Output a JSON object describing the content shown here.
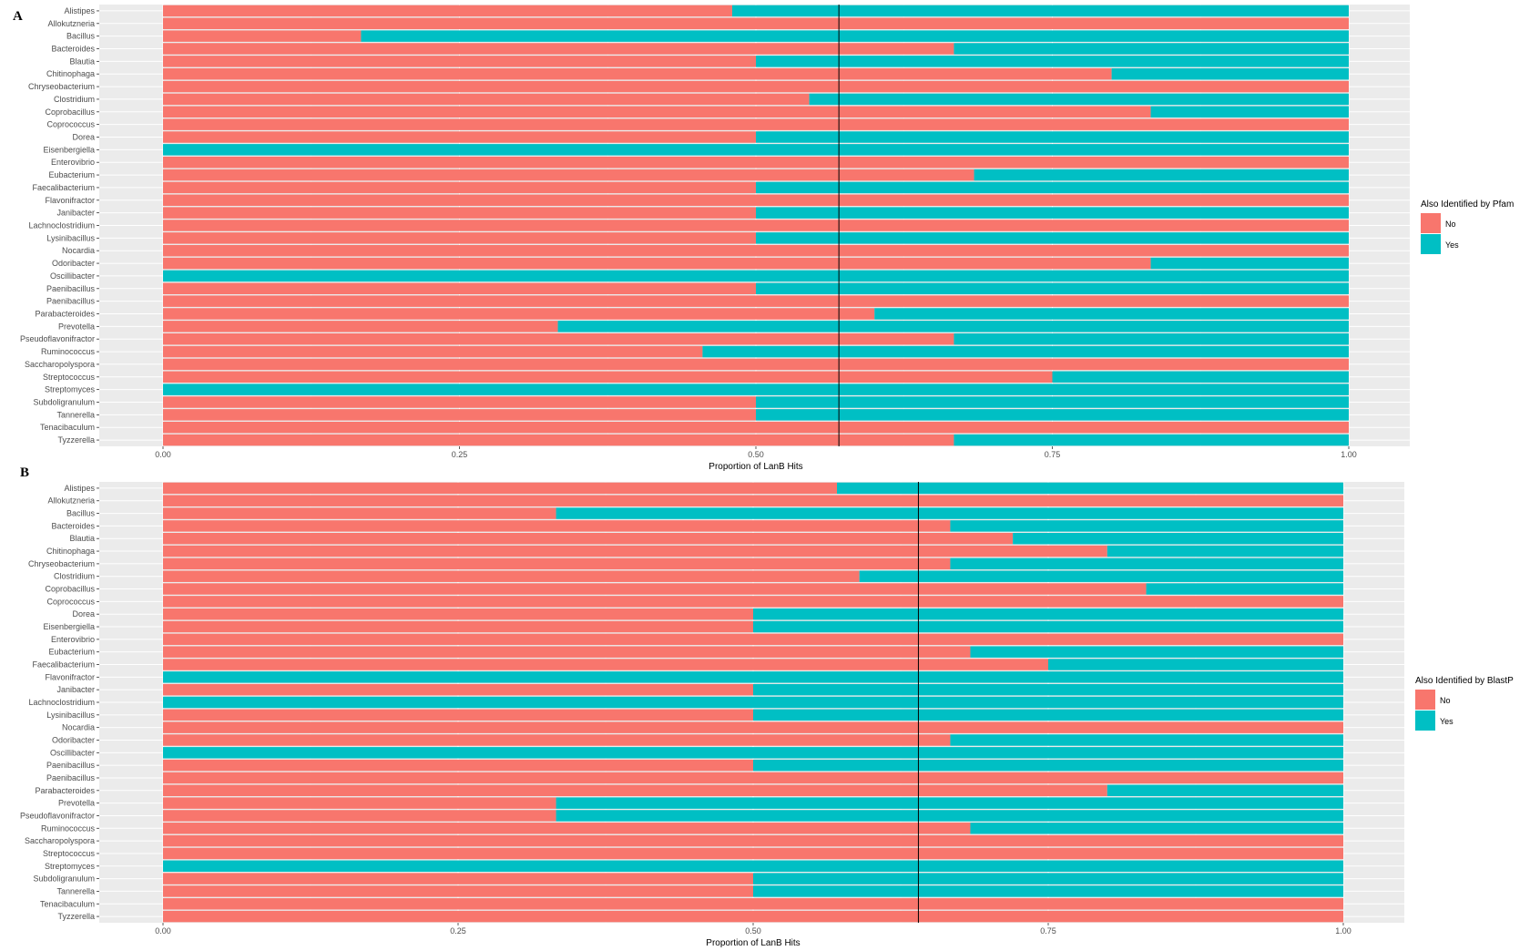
{
  "chart_data": [
    {
      "type": "bar",
      "orientation": "horizontal",
      "stacked": true,
      "panel_tag": "A",
      "xlabel": "Proportion of LanB Hits",
      "ylabel": "",
      "xlim": [
        0,
        1
      ],
      "xticks": [
        "0.00",
        "0.25",
        "0.50",
        "0.75",
        "1.00"
      ],
      "reference_line": 0.57,
      "grid": true,
      "legend": {
        "title": "Also Identified by Pfam",
        "position": "right"
      },
      "categories": [
        "Alistipes",
        "Allokutzneria",
        "Bacillus",
        "Bacteroides",
        "Blautia",
        "Chitinophaga",
        "Chryseobacterium",
        "Clostridium",
        "Coprobacillus",
        "Coprococcus",
        "Dorea",
        "Eisenbergiella",
        "Enterovibrio",
        "Eubacterium",
        "Faecalibacterium",
        "Flavonifractor",
        "Janibacter",
        "Lachnoclostridium",
        "Lysinibacillus",
        "Nocardia",
        "Odoribacter",
        "Oscillibacter",
        "Paenibacillus",
        "Paenibacillus",
        "Parabacteroides",
        "Prevotella",
        "Pseudoflavonifractor",
        "Ruminococcus",
        "Saccharopolyspora",
        "Streptococcus",
        "Streptomyces",
        "Subdoligranulum",
        "Tannerella",
        "Tenacibaculum",
        "Tyzzerella"
      ],
      "series": [
        {
          "name": "No",
          "color": "#F8766D",
          "values": [
            0.48,
            1,
            0.167,
            0.667,
            0.5,
            0.8,
            1,
            0.545,
            0.833,
            1,
            0.5,
            0,
            1,
            0.684,
            0.5,
            1,
            0.5,
            1,
            0.5,
            1,
            0.833,
            0,
            0.5,
            1,
            0.6,
            0.333,
            0.667,
            0.455,
            1,
            0.75,
            0,
            0.5,
            0.5,
            1,
            0.667
          ]
        },
        {
          "name": "Yes",
          "color": "#00BFC4",
          "values": [
            0.52,
            0,
            0.833,
            0.333,
            0.5,
            0.2,
            0,
            0.455,
            0.167,
            0,
            0.5,
            1,
            0,
            0.316,
            0.5,
            0,
            0.5,
            0,
            0.5,
            0,
            0.167,
            1,
            0.5,
            0,
            0.4,
            0.667,
            0.333,
            0.545,
            0,
            0.25,
            1,
            0.5,
            0.5,
            0,
            0.333
          ]
        }
      ]
    },
    {
      "type": "bar",
      "orientation": "horizontal",
      "stacked": true,
      "panel_tag": "B",
      "xlabel": "Proportion of LanB Hits",
      "ylabel": "",
      "xlim": [
        0,
        1
      ],
      "xticks": [
        "0.00",
        "0.25",
        "0.50",
        "0.75",
        "1.00"
      ],
      "reference_line": 0.64,
      "grid": true,
      "legend": {
        "title": "Also Identified by BlastP",
        "position": "right"
      },
      "categories": [
        "Alistipes",
        "Allokutzneria",
        "Bacillus",
        "Bacteroides",
        "Blautia",
        "Chitinophaga",
        "Chryseobacterium",
        "Clostridium",
        "Coprobacillus",
        "Coprococcus",
        "Dorea",
        "Eisenbergiella",
        "Enterovibrio",
        "Eubacterium",
        "Faecalibacterium",
        "Flavonifractor",
        "Janibacter",
        "Lachnoclostridium",
        "Lysinibacillus",
        "Nocardia",
        "Odoribacter",
        "Oscillibacter",
        "Paenibacillus",
        "Paenibacillus",
        "Parabacteroides",
        "Prevotella",
        "Pseudoflavonifractor",
        "Ruminococcus",
        "Saccharopolyspora",
        "Streptococcus",
        "Streptomyces",
        "Subdoligranulum",
        "Tannerella",
        "Tenacibaculum",
        "Tyzzerella"
      ],
      "series": [
        {
          "name": "No",
          "color": "#F8766D",
          "values": [
            0.571,
            1,
            0.333,
            0.667,
            0.72,
            0.8,
            0.667,
            0.59,
            0.833,
            1,
            0.5,
            0.5,
            1,
            0.684,
            0.75,
            0,
            0.5,
            0,
            0.5,
            1,
            0.667,
            0,
            0.5,
            1,
            0.8,
            0.333,
            0.333,
            0.684,
            1,
            1,
            0,
            0.5,
            0.5,
            1,
            1
          ]
        },
        {
          "name": "Yes",
          "color": "#00BFC4",
          "values": [
            0.429,
            0,
            0.667,
            0.333,
            0.28,
            0.2,
            0.333,
            0.41,
            0.167,
            0,
            0.5,
            0.5,
            0,
            0.316,
            0.25,
            1,
            0.5,
            1,
            0.5,
            0,
            0.333,
            1,
            0.5,
            0,
            0.2,
            0.667,
            0.667,
            0.316,
            0,
            0,
            1,
            0.5,
            0.5,
            0,
            0
          ]
        }
      ]
    }
  ]
}
